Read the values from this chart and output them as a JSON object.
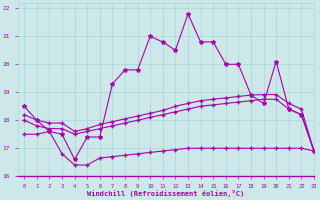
{
  "xlabel": "Windchill (Refroidissement éolien,°C)",
  "bg_color": "#cce8e8",
  "line_color": "#aa00aa",
  "grid_color": "#aad4d4",
  "xlim": [
    -0.5,
    23
  ],
  "ylim": [
    16,
    22.2
  ],
  "xticks": [
    0,
    1,
    2,
    3,
    4,
    5,
    6,
    7,
    8,
    9,
    10,
    11,
    12,
    13,
    14,
    15,
    16,
    17,
    18,
    19,
    20,
    21,
    22,
    23
  ],
  "yticks": [
    16,
    17,
    18,
    19,
    20,
    21,
    22
  ],
  "series1_x": [
    0,
    1,
    2,
    3,
    4,
    5,
    6,
    7,
    8,
    9,
    10,
    11,
    12,
    13,
    14,
    15,
    16,
    17,
    18,
    19,
    20,
    21,
    22,
    23
  ],
  "series1_y": [
    18.5,
    18.0,
    17.6,
    17.5,
    16.6,
    17.4,
    17.4,
    19.3,
    19.8,
    19.8,
    21.0,
    20.8,
    20.5,
    21.8,
    20.8,
    20.8,
    20.0,
    20.0,
    18.9,
    18.6,
    20.1,
    18.4,
    18.2,
    16.9
  ],
  "series2_x": [
    0,
    1,
    2,
    3,
    4,
    5,
    6,
    7,
    8,
    9,
    10,
    11,
    12,
    13,
    14,
    15,
    16,
    17,
    18,
    19,
    20,
    21,
    22,
    23
  ],
  "series2_y": [
    18.0,
    17.8,
    17.7,
    17.7,
    17.5,
    17.6,
    17.7,
    17.8,
    17.9,
    18.0,
    18.1,
    18.2,
    18.3,
    18.4,
    18.5,
    18.55,
    18.6,
    18.65,
    18.7,
    18.75,
    18.75,
    18.4,
    18.2,
    16.9
  ],
  "series3_x": [
    0,
    1,
    2,
    3,
    4,
    5,
    6,
    7,
    8,
    9,
    10,
    11,
    12,
    13,
    14,
    15,
    16,
    17,
    18,
    19,
    20,
    21,
    22,
    23
  ],
  "series3_y": [
    18.2,
    18.0,
    17.9,
    17.9,
    17.6,
    17.7,
    17.85,
    17.95,
    18.05,
    18.15,
    18.25,
    18.35,
    18.5,
    18.6,
    18.7,
    18.75,
    18.8,
    18.85,
    18.9,
    18.92,
    18.92,
    18.6,
    18.4,
    16.9
  ],
  "series4_x": [
    0,
    1,
    2,
    3,
    4,
    5,
    6,
    7,
    8,
    9,
    10,
    11,
    12,
    13,
    14,
    15,
    16,
    17,
    18,
    19,
    20,
    21,
    22,
    23
  ],
  "series4_y": [
    17.5,
    17.5,
    17.6,
    16.8,
    16.4,
    16.4,
    16.65,
    16.7,
    16.75,
    16.8,
    16.85,
    16.9,
    16.95,
    17.0,
    17.0,
    17.0,
    17.0,
    17.0,
    17.0,
    17.0,
    17.0,
    17.0,
    17.0,
    16.9
  ]
}
